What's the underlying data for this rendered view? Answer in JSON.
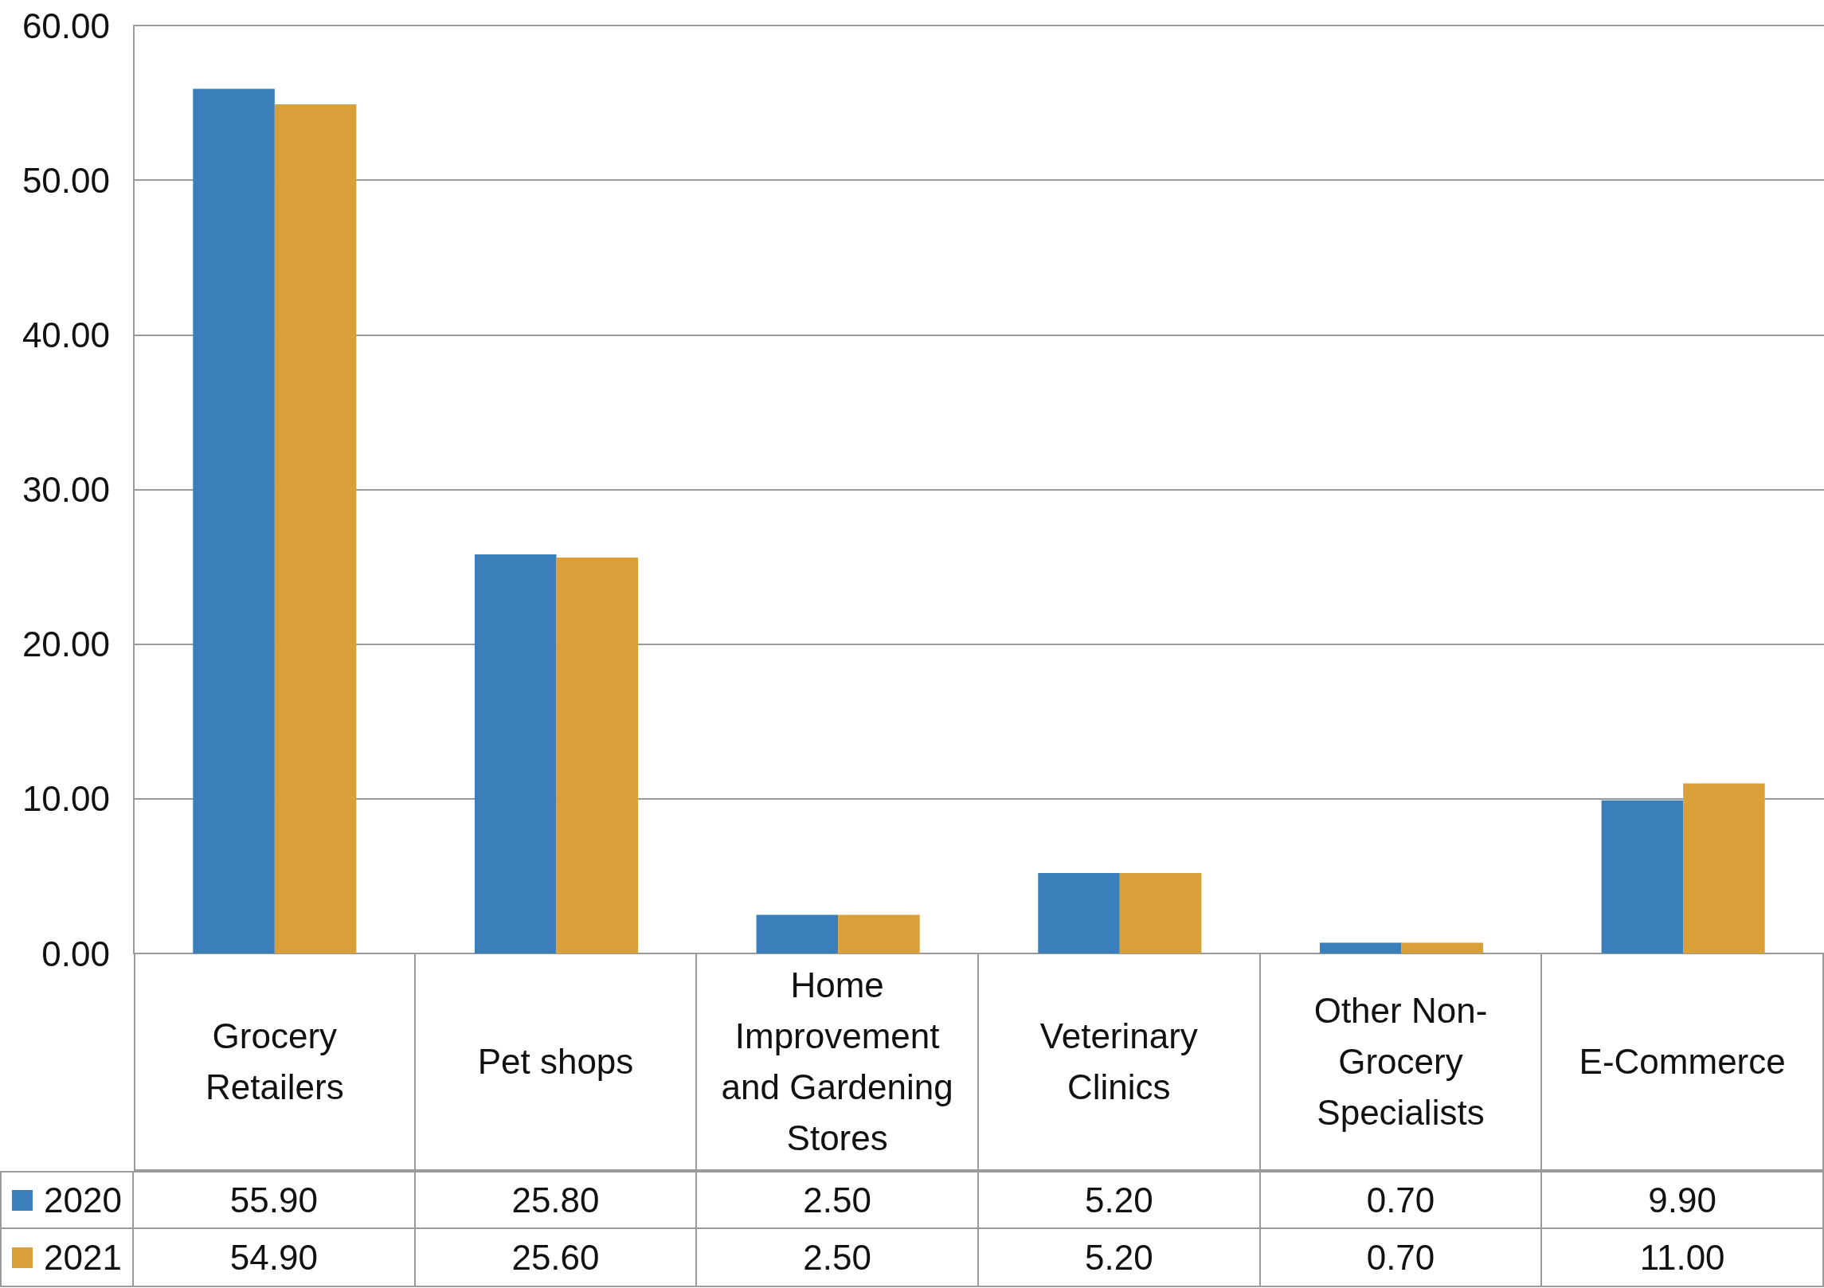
{
  "chart_data": {
    "type": "bar",
    "categories": [
      "Grocery Retailers",
      "Pet shops",
      "Home Improvement and Gardening Stores",
      "Veterinary Clinics",
      "Other Non-Grocery Specialists",
      "E-Commerce"
    ],
    "series": [
      {
        "name": "2020",
        "color": "#3a7fba",
        "values": [
          55.9,
          25.8,
          2.5,
          5.2,
          0.7,
          9.9
        ],
        "value_labels": [
          "55.90",
          "25.80",
          "2.50",
          "5.20",
          "0.70",
          "9.90"
        ]
      },
      {
        "name": "2021",
        "color": "#d9a03a",
        "values": [
          54.9,
          25.6,
          2.5,
          5.2,
          0.7,
          11.0
        ],
        "value_labels": [
          "54.90",
          "25.60",
          "2.50",
          "5.20",
          "0.70",
          "11.00"
        ]
      }
    ],
    "ylim": [
      0,
      60
    ],
    "yticks": [
      {
        "value": 0,
        "label": "0.00"
      },
      {
        "value": 10,
        "label": "10.00"
      },
      {
        "value": 20,
        "label": "20.00"
      },
      {
        "value": 30,
        "label": "30.00"
      },
      {
        "value": 40,
        "label": "40.00"
      },
      {
        "value": 50,
        "label": "50.00"
      },
      {
        "value": 60,
        "label": "60.00"
      }
    ],
    "grid": "y",
    "legend": "bottom"
  }
}
